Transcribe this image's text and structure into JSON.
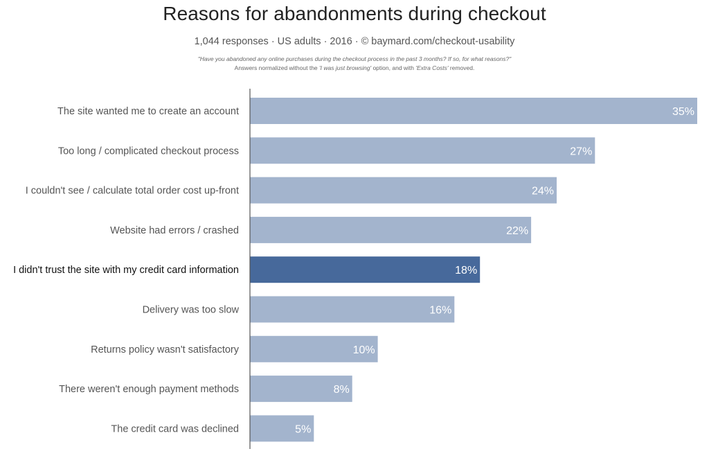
{
  "title": "Reasons for abandonments during checkout",
  "subtitle": "1,044 responses  ·  US adults  ·  2016  ·  ©  baymard.com/checkout-usability",
  "note": {
    "question": "\"Have you abandoned any online purchases during the checkout process in the past 3 months? If so, for what reasons?\"",
    "prefix": "Answers normalized without the ",
    "option1": "'I was just browsing'",
    "middle": " option, and with ",
    "option2": "'Extra Costs'",
    "suffix": " removed."
  },
  "colors": {
    "bar": "#a3b4cd",
    "highlight": "#47699b",
    "axis": "#555555",
    "label": "#555555",
    "highlight_label": "#111111",
    "value_text": "#ffffff"
  },
  "chart_data": {
    "type": "bar",
    "orientation": "horizontal",
    "categories": [
      "The site wanted me to create an account",
      "Too long / complicated checkout process",
      "I couldn't see / calculate total order cost up-front",
      "Website had errors / crashed",
      "I didn't trust the site with my credit card information",
      "Delivery was too slow",
      "Returns policy wasn't satisfactory",
      "There weren't enough payment methods",
      "The credit card was declined"
    ],
    "values": [
      35,
      27,
      24,
      22,
      18,
      16,
      10,
      8,
      5
    ],
    "value_labels": [
      "35%",
      "27%",
      "24%",
      "22%",
      "18%",
      "16%",
      "10%",
      "8%",
      "5%"
    ],
    "highlight_index": 4,
    "unit": "%",
    "xlim": [
      0,
      35
    ],
    "grid": false,
    "legend": "none"
  }
}
